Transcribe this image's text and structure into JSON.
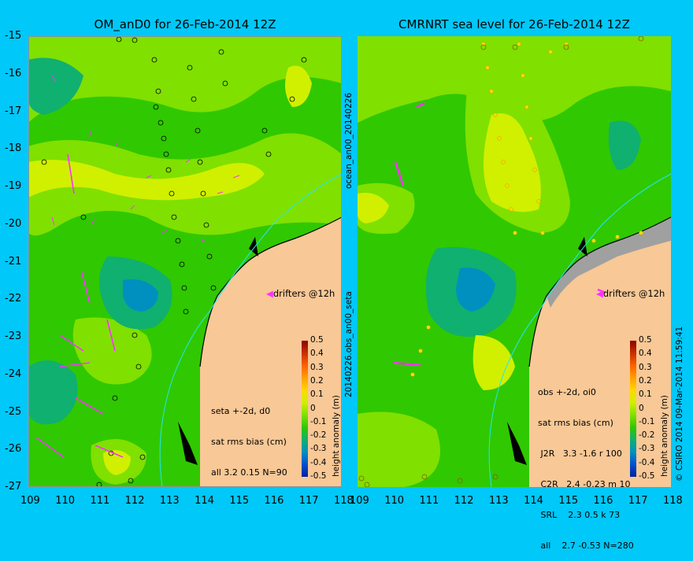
{
  "left_panel": {
    "title": "OM_anD0 for 26-Feb-2014 12Z",
    "info_lines": [
      "seta +-2d, d0",
      "sat rms bias (cm)",
      "all 3.2 0.15 N=90"
    ],
    "drifters_label": "drifters @12h"
  },
  "right_panel": {
    "title": "CMRNRT sea level  for 26-Feb-2014 12Z",
    "info_lines": [
      "obs +-2d, oi0",
      "sat rms bias (cm)",
      " J2R   3.3 -1.6 r 100",
      " C2R   2.4 -0.23 m 10",
      " SRL    2.3 0.5 k 73",
      " all    2.7 -0.53 N=280"
    ],
    "drifters_label": "drifters @12h"
  },
  "vertical_labels": {
    "center_top": "ocean_an00_20140226",
    "center_bottom": "20140226.obs_an00_seta",
    "right_credit": "© CSIRO 2014  09-Mar-2014 11:59:41"
  },
  "axes": {
    "y_ticks": [
      "-15",
      "-16",
      "-17",
      "-18",
      "-19",
      "-20",
      "-21",
      "-22",
      "-23",
      "-24",
      "-25",
      "-26",
      "-27"
    ],
    "x_ticks": [
      "109",
      "110",
      "111",
      "112",
      "113",
      "114",
      "115",
      "116",
      "117",
      "118"
    ],
    "lon_range": [
      109,
      118
    ],
    "lat_range": [
      -27,
      -15
    ]
  },
  "colorbar": {
    "label": "height anomaly (m)",
    "ticks": [
      "0.5",
      "0.4",
      "0.3",
      "0.2",
      "0.1",
      "0",
      "-0.1",
      "-0.2",
      "-0.3",
      "-0.4",
      "-0.5"
    ],
    "colors": [
      "#8b0000",
      "#c83000",
      "#ff6000",
      "#ffa000",
      "#ffd800",
      "#d0f000",
      "#80e000",
      "#30c800",
      "#10b070",
      "#0090c0",
      "#0050d0",
      "#0020a0"
    ]
  },
  "colors": {
    "background": "#00c8f8",
    "land": "#f8c896",
    "coast_shelf": "#a0a0a0",
    "isobath": "#20e8f0",
    "drifter": "#ff30ff"
  }
}
